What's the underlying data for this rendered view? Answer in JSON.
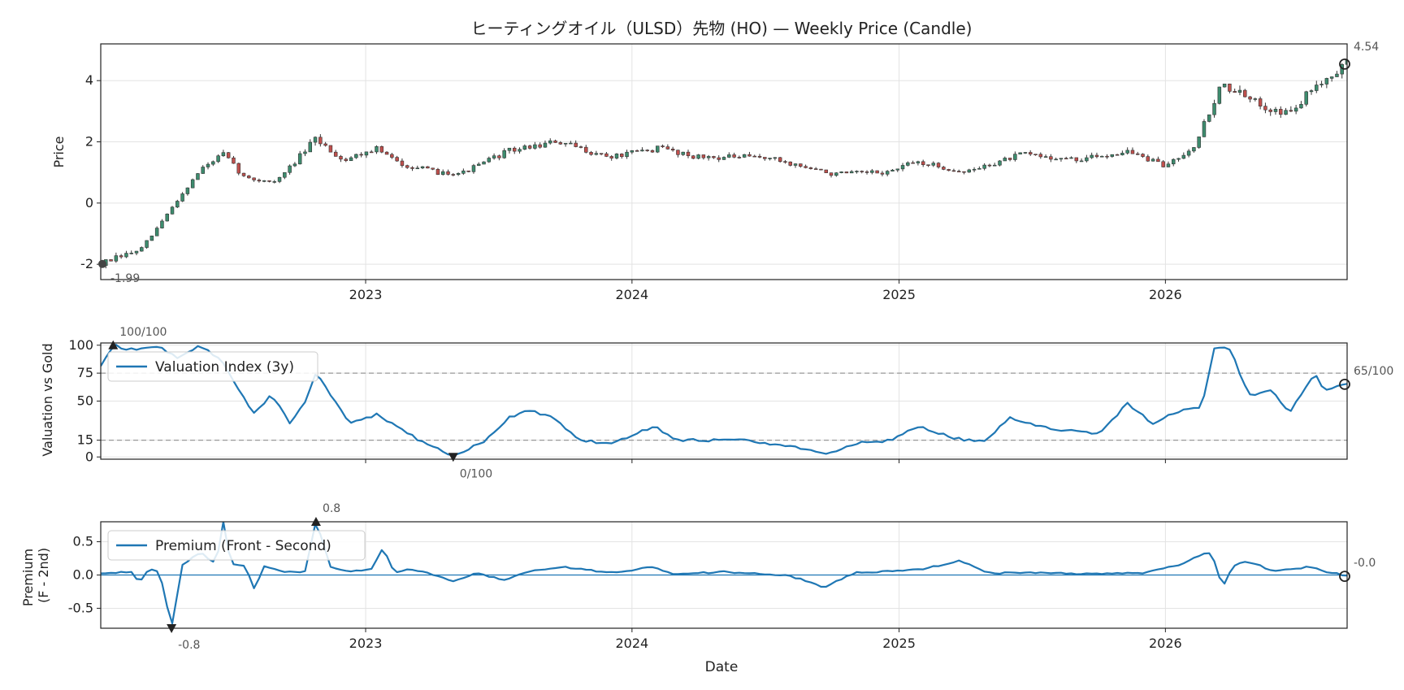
{
  "title": "ヒーティングオイル（ULSD）先物 (HO) — Weekly Price (Candle)",
  "x_axis_label": "Date",
  "year_ticks": [
    "2023",
    "2024",
    "2025",
    "2026"
  ],
  "colors": {
    "up": "#3d8c6e",
    "down": "#c0504d",
    "wick": "#333333",
    "line": "#1f77b4",
    "grid": "#e3e3e3",
    "ref_line": "#999999",
    "annotation": "#555555"
  },
  "chart_data": [
    {
      "id": "price",
      "type": "candlestick",
      "ylabel": "Price",
      "yticks": [
        -2,
        0,
        2,
        4
      ],
      "ylim": [
        -2.5,
        5.2
      ],
      "x_range": [
        "2022-01-03",
        "2026-09-07"
      ],
      "frequency": "weekly",
      "grid": true,
      "keypoints": [
        [
          "2022-01-03",
          -1.99
        ],
        [
          "2022-03-01",
          -1.5
        ],
        [
          "2022-04-15",
          0.0
        ],
        [
          "2022-05-20",
          1.1
        ],
        [
          "2022-06-20",
          1.6
        ],
        [
          "2022-07-20",
          0.8
        ],
        [
          "2022-09-01",
          0.7
        ],
        [
          "2022-10-25",
          2.1
        ],
        [
          "2022-12-01",
          1.4
        ],
        [
          "2023-01-15",
          1.8
        ],
        [
          "2023-02-15",
          1.3
        ],
        [
          "2023-04-10",
          1.0
        ],
        [
          "2023-05-15",
          1.0
        ],
        [
          "2023-07-15",
          1.7
        ],
        [
          "2023-09-20",
          2.0
        ],
        [
          "2023-12-01",
          1.5
        ],
        [
          "2024-02-10",
          1.8
        ],
        [
          "2024-04-01",
          1.5
        ],
        [
          "2024-07-01",
          1.5
        ],
        [
          "2024-10-01",
          0.95
        ],
        [
          "2024-12-15",
          1.0
        ],
        [
          "2025-01-25",
          1.35
        ],
        [
          "2025-04-01",
          1.0
        ],
        [
          "2025-06-20",
          1.6
        ],
        [
          "2025-09-01",
          1.4
        ],
        [
          "2025-11-10",
          1.7
        ],
        [
          "2025-12-31",
          1.2
        ],
        [
          "2026-02-10",
          1.9
        ],
        [
          "2026-03-20",
          3.9
        ],
        [
          "2026-05-01",
          3.3
        ],
        [
          "2026-06-20",
          2.9
        ],
        [
          "2026-08-01",
          4.0
        ],
        [
          "2026-09-07",
          4.54
        ]
      ],
      "annotations": {
        "min": {
          "date": "2022-01-03",
          "value": -1.99,
          "label": "-1.99"
        },
        "last": {
          "date": "2026-09-07",
          "value": 4.54,
          "label": "4.54"
        }
      }
    },
    {
      "id": "valuation",
      "type": "line",
      "ylabel": "Valuation vs Gold",
      "yticks": [
        0,
        15,
        50,
        75,
        100
      ],
      "ylim": [
        -2,
        102
      ],
      "reference_lines": [
        75,
        15
      ],
      "legend": "Valuation Index (3y)",
      "legend_position": "upper-left",
      "grid": true,
      "keypoints": [
        [
          "2022-01-03",
          82
        ],
        [
          "2022-01-20",
          100
        ],
        [
          "2022-02-20",
          95
        ],
        [
          "2022-03-20",
          100
        ],
        [
          "2022-04-20",
          88
        ],
        [
          "2022-05-20",
          100
        ],
        [
          "2022-06-20",
          85
        ],
        [
          "2022-07-15",
          55
        ],
        [
          "2022-08-01",
          40
        ],
        [
          "2022-08-25",
          55
        ],
        [
          "2022-09-20",
          30
        ],
        [
          "2022-10-10",
          50
        ],
        [
          "2022-10-25",
          75
        ],
        [
          "2022-11-10",
          60
        ],
        [
          "2022-12-10",
          30
        ],
        [
          "2023-01-15",
          38
        ],
        [
          "2023-02-20",
          25
        ],
        [
          "2023-03-15",
          15
        ],
        [
          "2023-05-01",
          0
        ],
        [
          "2023-06-15",
          15
        ],
        [
          "2023-07-15",
          35
        ],
        [
          "2023-08-15",
          42
        ],
        [
          "2023-09-15",
          35
        ],
        [
          "2023-10-20",
          15
        ],
        [
          "2023-12-01",
          12
        ],
        [
          "2024-02-01",
          27
        ],
        [
          "2024-03-01",
          15
        ],
        [
          "2024-06-01",
          15
        ],
        [
          "2024-08-01",
          10
        ],
        [
          "2024-09-25",
          2
        ],
        [
          "2024-11-01",
          12
        ],
        [
          "2024-12-20",
          15
        ],
        [
          "2025-01-25",
          28
        ],
        [
          "2025-03-01",
          20
        ],
        [
          "2025-04-01",
          15
        ],
        [
          "2025-05-01",
          15
        ],
        [
          "2025-06-01",
          35
        ],
        [
          "2025-08-01",
          25
        ],
        [
          "2025-10-01",
          20
        ],
        [
          "2025-11-10",
          48
        ],
        [
          "2025-12-15",
          30
        ],
        [
          "2026-01-15",
          40
        ],
        [
          "2026-02-20",
          45
        ],
        [
          "2026-03-10",
          100
        ],
        [
          "2026-04-01",
          95
        ],
        [
          "2026-04-25",
          55
        ],
        [
          "2026-05-25",
          60
        ],
        [
          "2026-06-20",
          40
        ],
        [
          "2026-07-25",
          75
        ],
        [
          "2026-08-05",
          60
        ],
        [
          "2026-09-07",
          65
        ]
      ],
      "annotations": {
        "max": {
          "date": "2022-01-20",
          "value": 100,
          "label": "100/100"
        },
        "min": {
          "date": "2023-05-01",
          "value": 0,
          "label": "0/100"
        },
        "last": {
          "date": "2026-09-07",
          "value": 65,
          "label": "65/100"
        }
      }
    },
    {
      "id": "premium",
      "type": "line",
      "ylabel": "Premium\n(F - 2nd)",
      "yticks": [
        -0.5,
        0.0,
        0.5
      ],
      "ylim": [
        -0.8,
        0.8
      ],
      "zero_line": true,
      "legend": "Premium (Front - Second)",
      "legend_position": "upper-left",
      "grid": true,
      "keypoints": [
        [
          "2022-01-03",
          0.03
        ],
        [
          "2022-02-15",
          0.05
        ],
        [
          "2022-02-25",
          -0.12
        ],
        [
          "2022-03-10",
          0.1
        ],
        [
          "2022-03-25",
          0.05
        ],
        [
          "2022-04-10",
          -0.8
        ],
        [
          "2022-04-25",
          0.15
        ],
        [
          "2022-05-20",
          0.35
        ],
        [
          "2022-06-10",
          0.15
        ],
        [
          "2022-06-20",
          0.8
        ],
        [
          "2022-06-30",
          0.15
        ],
        [
          "2022-07-20",
          0.15
        ],
        [
          "2022-08-01",
          -0.2
        ],
        [
          "2022-08-15",
          0.12
        ],
        [
          "2022-09-10",
          0.05
        ],
        [
          "2022-10-10",
          0.05
        ],
        [
          "2022-10-25",
          0.8
        ],
        [
          "2022-11-15",
          0.1
        ],
        [
          "2022-12-10",
          0.05
        ],
        [
          "2023-01-10",
          0.1
        ],
        [
          "2023-01-25",
          0.42
        ],
        [
          "2023-02-10",
          0.02
        ],
        [
          "2023-03-01",
          0.1
        ],
        [
          "2023-04-01",
          0.02
        ],
        [
          "2023-05-01",
          -0.1
        ],
        [
          "2023-06-01",
          0.03
        ],
        [
          "2023-07-10",
          -0.08
        ],
        [
          "2023-08-10",
          0.05
        ],
        [
          "2023-10-01",
          0.12
        ],
        [
          "2023-12-01",
          0.03
        ],
        [
          "2024-02-01",
          0.12
        ],
        [
          "2024-03-01",
          0.0
        ],
        [
          "2024-05-01",
          0.05
        ],
        [
          "2024-08-01",
          0.0
        ],
        [
          "2024-09-20",
          -0.18
        ],
        [
          "2024-11-01",
          0.03
        ],
        [
          "2025-02-01",
          0.08
        ],
        [
          "2025-03-25",
          0.22
        ],
        [
          "2025-05-01",
          0.03
        ],
        [
          "2025-07-01",
          0.03
        ],
        [
          "2025-09-01",
          0.02
        ],
        [
          "2025-12-01",
          0.03
        ],
        [
          "2026-01-20",
          0.15
        ],
        [
          "2026-02-20",
          0.3
        ],
        [
          "2026-03-05",
          0.35
        ],
        [
          "2026-03-20",
          -0.18
        ],
        [
          "2026-04-05",
          0.15
        ],
        [
          "2026-04-25",
          0.2
        ],
        [
          "2026-06-01",
          0.05
        ],
        [
          "2026-07-15",
          0.12
        ],
        [
          "2026-09-07",
          -0.02
        ]
      ],
      "annotations": {
        "max": {
          "date": "2022-10-25",
          "value": 0.8,
          "label": "0.8"
        },
        "min": {
          "date": "2022-04-10",
          "value": -0.8,
          "label": "-0.8"
        },
        "last": {
          "date": "2026-09-07",
          "value": -0.02,
          "label": "-0.0"
        }
      }
    }
  ]
}
